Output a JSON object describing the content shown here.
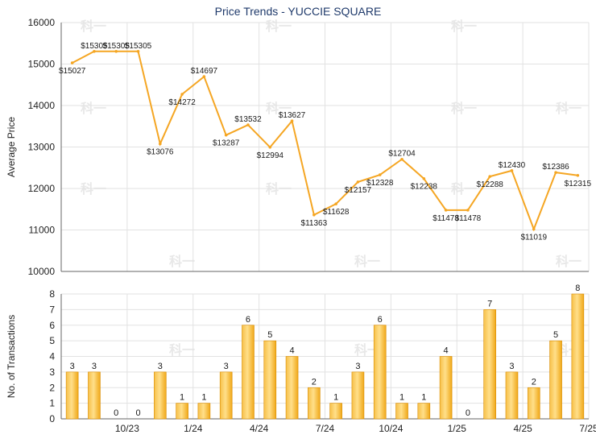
{
  "chart_data": [
    {
      "type": "line",
      "title": "Price Trends - YUCCIE SQUARE",
      "ylabel": "Average Price",
      "ylim": [
        10000,
        16000
      ],
      "yticks": [
        10000,
        11000,
        12000,
        13000,
        14000,
        15000,
        16000
      ],
      "series": [
        {
          "values": [
            15027,
            15305,
            15305,
            15305,
            13076,
            14272,
            14697,
            13287,
            13532,
            12994,
            13627,
            11363,
            11628,
            12157,
            12328,
            12704,
            12238,
            11478,
            11478,
            12288,
            12430,
            11019,
            12386,
            12315
          ],
          "labels": [
            "$15027",
            "$15305",
            "$15305",
            "$15305",
            "$13076",
            "$14272",
            "$14697",
            "$13287",
            "$13532",
            "$12994",
            "$13627",
            "$11363",
            "$11628",
            "$12157",
            "$12328",
            "$12704",
            "$12238",
            "$11478",
            "$11478",
            "$12288",
            "$12430",
            "$11019",
            "$12386",
            "$12315"
          ]
        }
      ],
      "grid": true,
      "color": "#f5a623"
    },
    {
      "type": "bar",
      "ylabel": "No. of Transactions",
      "ylim": [
        0,
        8
      ],
      "yticks": [
        0,
        1,
        2,
        3,
        4,
        5,
        6,
        7,
        8
      ],
      "xticks": [
        "10/23",
        "1/24",
        "4/24",
        "7/24",
        "10/24",
        "1/25",
        "4/25",
        "7/25"
      ],
      "values": [
        3,
        3,
        0,
        0,
        3,
        1,
        1,
        3,
        6,
        5,
        4,
        2,
        1,
        3,
        6,
        1,
        1,
        4,
        0,
        7,
        3,
        2,
        5,
        8
      ],
      "grid": true,
      "color": "#f0a818"
    }
  ],
  "watermark": "科一"
}
